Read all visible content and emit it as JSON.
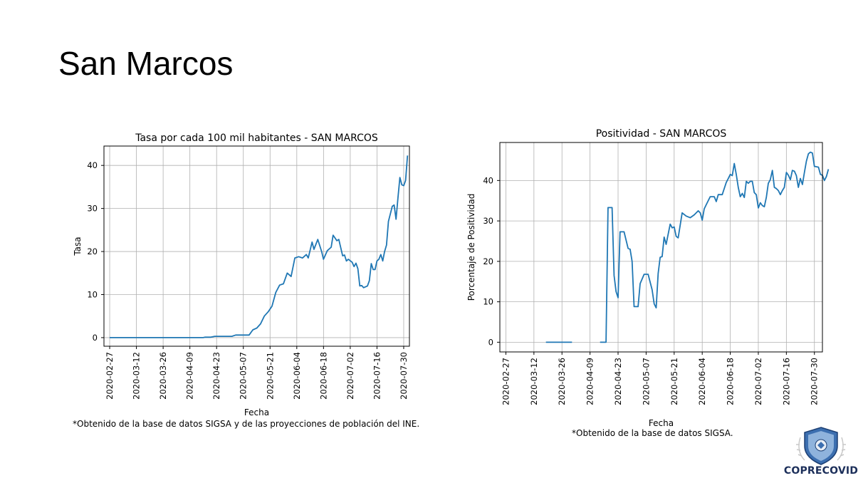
{
  "slide": {
    "title": "San Marcos",
    "logo_text": "COPRECOVID",
    "accent_color": "#1f77b4"
  },
  "chart_data": [
    {
      "type": "line",
      "title": "Tasa por cada 100 mil habitantes - SAN MARCOS",
      "xlabel": "Fecha",
      "ylabel": "Tasa",
      "note": "*Obtenido de la base de datos SIGSA y de las proyecciones de población del INE.",
      "xlim": [
        "2020-02-24",
        "2020-08-02"
      ],
      "ylim": [
        -2,
        44.5
      ],
      "x_ticks": [
        "2020-02-27",
        "2020-03-12",
        "2020-03-26",
        "2020-04-09",
        "2020-04-23",
        "2020-05-07",
        "2020-05-21",
        "2020-06-04",
        "2020-06-18",
        "2020-07-02",
        "2020-07-16",
        "2020-07-30"
      ],
      "y_ticks": [
        0,
        10,
        20,
        30,
        40
      ],
      "grid": true,
      "series": [
        {
          "color": "#1f77b4",
          "points": [
            [
              "2020-02-27",
              0
            ],
            [
              "2020-04-16",
              0
            ],
            [
              "2020-04-17",
              0.1
            ],
            [
              "2020-04-20",
              0.1
            ],
            [
              "2020-04-22",
              0.3
            ],
            [
              "2020-05-01",
              0.3
            ],
            [
              "2020-05-03",
              0.6
            ],
            [
              "2020-05-10",
              0.6
            ],
            [
              "2020-05-12",
              1.8
            ],
            [
              "2020-05-14",
              2.2
            ],
            [
              "2020-05-16",
              3.2
            ],
            [
              "2020-05-18",
              5.0
            ],
            [
              "2020-05-20",
              6.0
            ],
            [
              "2020-05-22",
              7.3
            ],
            [
              "2020-05-24",
              10.5
            ],
            [
              "2020-05-26",
              12.2
            ],
            [
              "2020-05-28",
              12.5
            ],
            [
              "2020-05-30",
              15.0
            ],
            [
              "2020-06-01",
              14.2
            ],
            [
              "2020-06-03",
              18.5
            ],
            [
              "2020-06-05",
              18.8
            ],
            [
              "2020-06-07",
              18.5
            ],
            [
              "2020-06-09",
              19.3
            ],
            [
              "2020-06-10",
              18.5
            ],
            [
              "2020-06-12",
              22.2
            ],
            [
              "2020-06-13",
              20.5
            ],
            [
              "2020-06-15",
              22.8
            ],
            [
              "2020-06-17",
              20.0
            ],
            [
              "2020-06-18",
              18.2
            ],
            [
              "2020-06-20",
              20.2
            ],
            [
              "2020-06-22",
              21.0
            ],
            [
              "2020-06-23",
              23.8
            ],
            [
              "2020-06-25",
              22.5
            ],
            [
              "2020-06-26",
              22.8
            ],
            [
              "2020-06-28",
              19.0
            ],
            [
              "2020-06-29",
              19.2
            ],
            [
              "2020-06-30",
              17.8
            ],
            [
              "2020-07-01",
              18.2
            ],
            [
              "2020-07-03",
              17.5
            ],
            [
              "2020-07-04",
              16.5
            ],
            [
              "2020-07-05",
              17.3
            ],
            [
              "2020-07-06",
              16.0
            ],
            [
              "2020-07-07",
              12.0
            ],
            [
              "2020-07-08",
              12.1
            ],
            [
              "2020-07-09",
              11.6
            ],
            [
              "2020-07-11",
              12.0
            ],
            [
              "2020-07-12",
              13.2
            ],
            [
              "2020-07-13",
              17.2
            ],
            [
              "2020-07-14",
              15.8
            ],
            [
              "2020-07-15",
              15.8
            ],
            [
              "2020-07-16",
              17.8
            ],
            [
              "2020-07-17",
              18.2
            ],
            [
              "2020-07-18",
              19.3
            ],
            [
              "2020-07-19",
              17.8
            ],
            [
              "2020-07-20",
              20.0
            ],
            [
              "2020-07-21",
              21.5
            ],
            [
              "2020-07-22",
              27.0
            ],
            [
              "2020-07-24",
              30.5
            ],
            [
              "2020-07-25",
              30.8
            ],
            [
              "2020-07-26",
              27.5
            ],
            [
              "2020-07-27",
              32.5
            ],
            [
              "2020-07-28",
              37.2
            ],
            [
              "2020-07-29",
              35.5
            ],
            [
              "2020-07-30",
              35.3
            ],
            [
              "2020-07-31",
              36.5
            ],
            [
              "2020-08-01",
              42.3
            ]
          ]
        }
      ]
    },
    {
      "type": "line",
      "title": "Positividad - SAN MARCOS",
      "xlabel": "Fecha",
      "ylabel": "Porcentaje de Positividad",
      "note": "*Obtenido de la base de datos SIGSA.",
      "xlim": [
        "2020-02-24",
        "2020-08-03"
      ],
      "ylim": [
        -2.4,
        49.4
      ],
      "x_ticks": [
        "2020-02-27",
        "2020-03-12",
        "2020-03-26",
        "2020-04-09",
        "2020-04-23",
        "2020-05-07",
        "2020-05-21",
        "2020-06-04",
        "2020-06-18",
        "2020-07-02",
        "2020-07-16",
        "2020-07-30"
      ],
      "y_ticks": [
        0,
        10,
        20,
        30,
        40
      ],
      "grid": true,
      "series": [
        {
          "color": "#1f77b4",
          "segments": [
            [
              [
                "2020-03-18",
                0
              ],
              [
                "2020-03-31",
                0
              ]
            ],
            [
              [
                "2020-04-14",
                0
              ],
              [
                "2020-04-17",
                0
              ],
              [
                "2020-04-18",
                33.3
              ],
              [
                "2020-04-20",
                33.3
              ],
              [
                "2020-04-21",
                16.5
              ],
              [
                "2020-04-22",
                12.5
              ],
              [
                "2020-04-23",
                11.0
              ],
              [
                "2020-04-24",
                27.3
              ],
              [
                "2020-04-26",
                27.3
              ],
              [
                "2020-04-28",
                23.2
              ],
              [
                "2020-04-29",
                23.0
              ],
              [
                "2020-04-30",
                20.0
              ],
              [
                "2020-05-01",
                8.8
              ],
              [
                "2020-05-03",
                8.8
              ],
              [
                "2020-05-04",
                14.5
              ],
              [
                "2020-05-06",
                16.8
              ],
              [
                "2020-05-08",
                16.8
              ],
              [
                "2020-05-10",
                13.0
              ],
              [
                "2020-05-11",
                9.5
              ],
              [
                "2020-05-12",
                8.5
              ],
              [
                "2020-05-13",
                17.0
              ],
              [
                "2020-05-14",
                21.0
              ],
              [
                "2020-05-15",
                21.2
              ],
              [
                "2020-05-16",
                26.0
              ],
              [
                "2020-05-17",
                24.2
              ],
              [
                "2020-05-19",
                29.2
              ],
              [
                "2020-05-20",
                28.3
              ],
              [
                "2020-05-21",
                28.5
              ],
              [
                "2020-05-22",
                26.2
              ],
              [
                "2020-05-23",
                25.8
              ],
              [
                "2020-05-25",
                32.0
              ],
              [
                "2020-05-27",
                31.2
              ],
              [
                "2020-05-29",
                30.8
              ],
              [
                "2020-05-31",
                31.5
              ],
              [
                "2020-06-02",
                32.5
              ],
              [
                "2020-06-03",
                32.0
              ],
              [
                "2020-06-04",
                30.2
              ],
              [
                "2020-06-05",
                33.0
              ],
              [
                "2020-06-06",
                34.0
              ],
              [
                "2020-06-08",
                36.0
              ],
              [
                "2020-06-10",
                36.0
              ],
              [
                "2020-06-11",
                34.8
              ],
              [
                "2020-06-12",
                36.5
              ],
              [
                "2020-06-14",
                36.5
              ],
              [
                "2020-06-16",
                39.5
              ],
              [
                "2020-06-17",
                40.5
              ],
              [
                "2020-06-18",
                41.5
              ],
              [
                "2020-06-19",
                41.2
              ],
              [
                "2020-06-20",
                44.2
              ],
              [
                "2020-06-21",
                41.5
              ],
              [
                "2020-06-22",
                38.3
              ],
              [
                "2020-06-23",
                36.0
              ],
              [
                "2020-06-24",
                36.8
              ],
              [
                "2020-06-25",
                35.8
              ],
              [
                "2020-06-26",
                39.8
              ],
              [
                "2020-06-27",
                39.3
              ],
              [
                "2020-06-28",
                39.8
              ],
              [
                "2020-06-29",
                39.8
              ],
              [
                "2020-06-30",
                37.0
              ],
              [
                "2020-07-01",
                36.5
              ],
              [
                "2020-07-02",
                33.2
              ],
              [
                "2020-07-03",
                34.5
              ],
              [
                "2020-07-04",
                33.8
              ],
              [
                "2020-07-05",
                33.5
              ],
              [
                "2020-07-06",
                35.8
              ],
              [
                "2020-07-07",
                39.3
              ],
              [
                "2020-07-08",
                40.2
              ],
              [
                "2020-07-09",
                42.5
              ],
              [
                "2020-07-10",
                38.3
              ],
              [
                "2020-07-11",
                38.0
              ],
              [
                "2020-07-12",
                37.5
              ],
              [
                "2020-07-13",
                36.5
              ],
              [
                "2020-07-14",
                37.5
              ],
              [
                "2020-07-15",
                38.3
              ],
              [
                "2020-07-16",
                42.0
              ],
              [
                "2020-07-17",
                41.3
              ],
              [
                "2020-07-18",
                40.2
              ],
              [
                "2020-07-19",
                42.5
              ],
              [
                "2020-07-20",
                42.3
              ],
              [
                "2020-07-21",
                41.2
              ],
              [
                "2020-07-22",
                38.3
              ],
              [
                "2020-07-23",
                40.5
              ],
              [
                "2020-07-24",
                39.0
              ],
              [
                "2020-07-25",
                42.0
              ],
              [
                "2020-07-26",
                44.8
              ],
              [
                "2020-07-27",
                46.6
              ],
              [
                "2020-07-28",
                47.0
              ],
              [
                "2020-07-29",
                46.8
              ],
              [
                "2020-07-30",
                43.5
              ],
              [
                "2020-08-01",
                43.3
              ],
              [
                "2020-08-02",
                41.5
              ],
              [
                "2020-08-03",
                41.3
              ],
              [
                "2020-08-04",
                40.0
              ],
              [
                "2020-08-05",
                41.0
              ],
              [
                "2020-08-06",
                42.8
              ]
            ]
          ]
        }
      ]
    }
  ]
}
